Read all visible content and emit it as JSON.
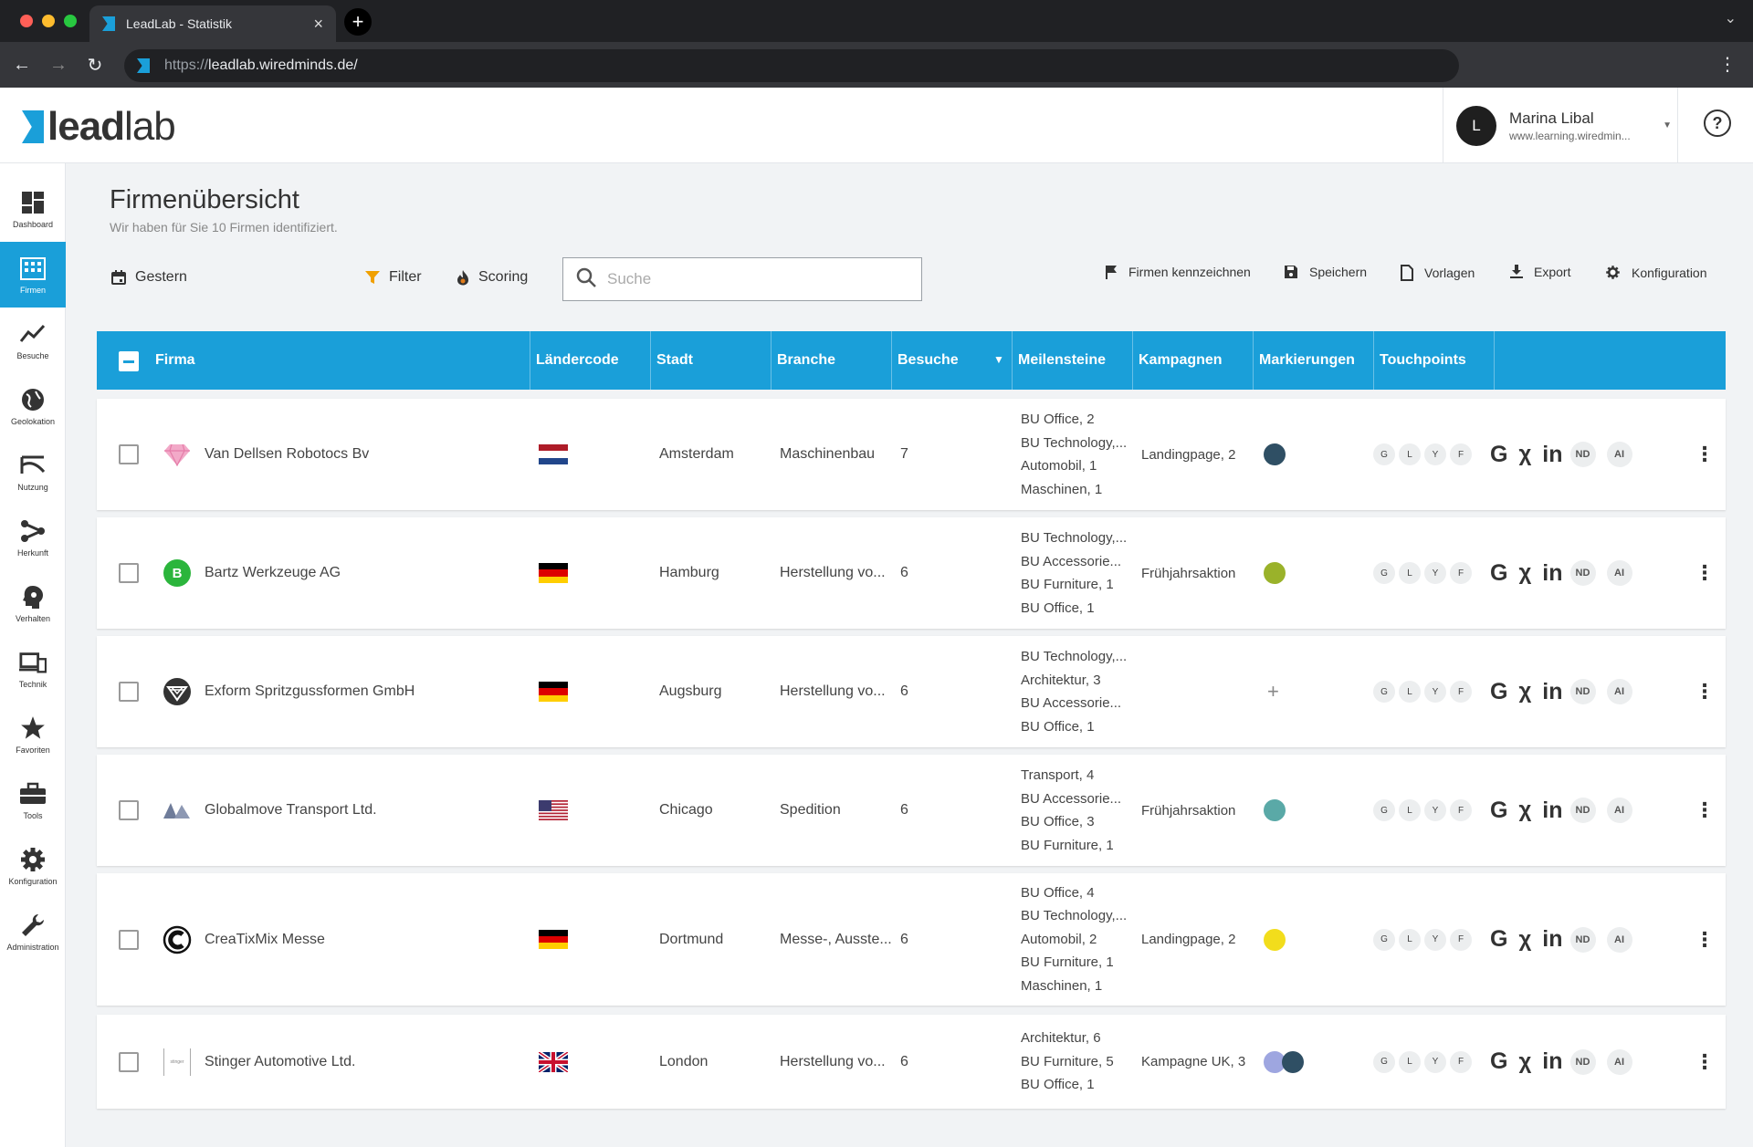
{
  "browser": {
    "tab_title": "LeadLab - Statistik",
    "url_protocol": "https://",
    "url_host": "leadlab.wiredminds.de/"
  },
  "header": {
    "logo_bold": "lead",
    "logo_light": "lab",
    "user_initial": "L",
    "user_name": "Marina Libal",
    "user_domain": "www.learning.wiredmin..."
  },
  "sidebar": {
    "items": [
      {
        "label": "Dashboard",
        "icon": "dashboard-icon"
      },
      {
        "label": "Firmen",
        "icon": "building-icon"
      },
      {
        "label": "Besuche",
        "icon": "chart-line-icon"
      },
      {
        "label": "Geolokation",
        "icon": "globe-icon"
      },
      {
        "label": "Nutzung",
        "icon": "usage-icon"
      },
      {
        "label": "Herkunft",
        "icon": "source-icon"
      },
      {
        "label": "Verhalten",
        "icon": "behavior-icon"
      },
      {
        "label": "Technik",
        "icon": "devices-icon"
      },
      {
        "label": "Favoriten",
        "icon": "star-icon"
      },
      {
        "label": "Tools",
        "icon": "toolbox-icon"
      },
      {
        "label": "Konfiguration",
        "icon": "gear-icon"
      },
      {
        "label": "Administration",
        "icon": "wrench-icon"
      }
    ]
  },
  "page": {
    "title": "Firmenübersicht",
    "subtitle": "Wir haben für Sie 10 Firmen identifiziert."
  },
  "controls": {
    "date_label": "Gestern",
    "filter_label": "Filter",
    "scoring_label": "Scoring",
    "search_placeholder": "Suche",
    "mark_label": "Firmen kennzeichnen",
    "save_label": "Speichern",
    "templates_label": "Vorlagen",
    "export_label": "Export",
    "config_label": "Konfiguration"
  },
  "table": {
    "headers": [
      "Firma",
      "Ländercode",
      "Stadt",
      "Branche",
      "Besuche",
      "Meilensteine",
      "Kampagnen",
      "Markierungen",
      "Touchpoints"
    ],
    "touchpoint_letters": [
      "G",
      "L",
      "Y",
      "F"
    ],
    "social_labels": [
      "G",
      "X",
      "in",
      "ND",
      "AI"
    ],
    "rows": [
      {
        "company": "Van Dellsen Robotocs Bv",
        "logo": "diamond-logo",
        "country": "NL",
        "city": "Amsterdam",
        "industry": "Maschinenbau",
        "visits": "7",
        "milestones": [
          "BU Office, 2",
          "BU Technology,...",
          "Automobil, 1",
          "Maschinen, 1"
        ],
        "campaign": "Landingpage, 2",
        "marks": [
          "#2f4f64"
        ]
      },
      {
        "company": "Bartz Werkzeuge AG",
        "logo": "letter-b-logo",
        "country": "DE",
        "city": "Hamburg",
        "industry": "Herstellung vo...",
        "visits": "6",
        "milestones": [
          "BU Technology,...",
          "BU Accessorie...",
          "BU Furniture, 1",
          "BU Office, 1"
        ],
        "campaign": "Frühjahrsaktion",
        "marks": [
          "#9ab22a"
        ]
      },
      {
        "company": "Exform Spritzgussformen GmbH",
        "logo": "shield-logo",
        "country": "DE",
        "city": "Augsburg",
        "industry": "Herstellung vo...",
        "visits": "6",
        "milestones": [
          "BU Technology,...",
          "Architektur, 3",
          "BU Accessorie...",
          "BU Office, 1"
        ],
        "campaign": "",
        "marks": []
      },
      {
        "company": "Globalmove Transport Ltd.",
        "logo": "mountains-logo",
        "country": "US",
        "city": "Chicago",
        "industry": "Spedition",
        "visits": "6",
        "milestones": [
          "Transport, 4",
          "BU Accessorie...",
          "BU Office, 3",
          "BU Furniture, 1"
        ],
        "campaign": "Frühjahrsaktion",
        "marks": [
          "#5aa9a7"
        ]
      },
      {
        "company": "CreaTixMix Messe",
        "logo": "c-logo",
        "country": "DE",
        "city": "Dortmund",
        "industry": "Messe-, Ausste...",
        "visits": "6",
        "milestones": [
          "BU Office, 4",
          "BU Technology,...",
          "Automobil, 2",
          "BU Furniture, 1",
          "Maschinen, 1"
        ],
        "campaign": "Landingpage, 2",
        "marks": [
          "#f2dd1c"
        ]
      },
      {
        "company": "Stinger Automotive Ltd.",
        "logo": "stinger-logo",
        "country": "GB",
        "city": "London",
        "industry": "Herstellung vo...",
        "visits": "6",
        "milestones": [
          "Architektur, 6",
          "BU Furniture, 5",
          "BU Office, 1"
        ],
        "campaign": "Kampagne UK, 3",
        "marks": [
          "#9ea6e0",
          "#2f4f64"
        ]
      }
    ]
  },
  "colors": {
    "accent": "#1a9fd9",
    "scoring_flame": "#e07b1a",
    "filter_funnel": "#f0a000"
  }
}
